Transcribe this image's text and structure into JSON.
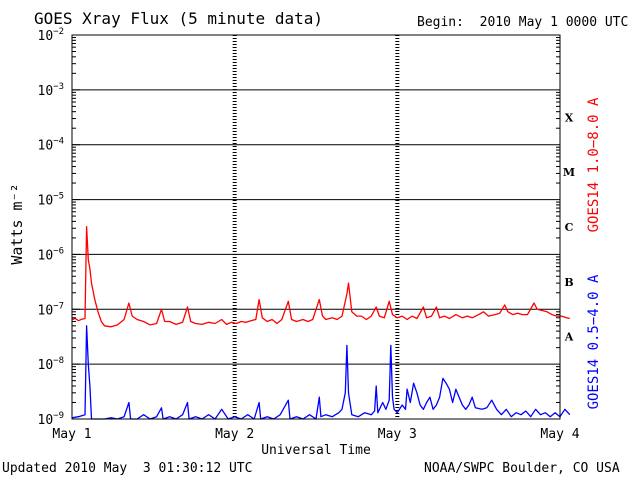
{
  "header": {
    "title": "GOES Xray Flux (5 minute data)",
    "begin_label": "Begin:",
    "begin_value": "2010 May 1 0000 UTC"
  },
  "footer": {
    "updated": "Updated 2010 May  3 01:30:12 UTC",
    "source": "NOAA/SWPC Boulder, CO USA"
  },
  "colors": {
    "long_channel": "#ff0000",
    "short_channel": "#0000ff",
    "axis": "#000000",
    "background": "#ffffff"
  },
  "chart_data": {
    "type": "line",
    "title": "GOES Xray Flux (5 minute data)",
    "xlabel": "Universal Time",
    "ylabel": "Watts m⁻²",
    "yscale": "log",
    "ylim": [
      1e-09,
      0.01
    ],
    "xlim": [
      0,
      3
    ],
    "x_unit": "days since 2010 May 1 0000 UTC",
    "x_ticks": [
      {
        "value": 0,
        "label": "May 1"
      },
      {
        "value": 1,
        "label": "May 2"
      },
      {
        "value": 2,
        "label": "May 3"
      },
      {
        "value": 3,
        "label": "May 4"
      }
    ],
    "y_ticks": [
      {
        "value": 1e-09,
        "base": "10",
        "exp": "−9"
      },
      {
        "value": 1e-08,
        "base": "10",
        "exp": "−8"
      },
      {
        "value": 1e-07,
        "base": "10",
        "exp": "−7"
      },
      {
        "value": 1e-06,
        "base": "10",
        "exp": "−6"
      },
      {
        "value": 1e-05,
        "base": "10",
        "exp": "−5"
      },
      {
        "value": 0.0001,
        "base": "10",
        "exp": "−4"
      },
      {
        "value": 0.001,
        "base": "10",
        "exp": "−3"
      },
      {
        "value": 0.01,
        "base": "10",
        "exp": "−2"
      }
    ],
    "flare_classes": [
      {
        "label": "A",
        "min": 1e-08,
        "max": 1e-07
      },
      {
        "label": "B",
        "min": 1e-07,
        "max": 1e-06
      },
      {
        "label": "C",
        "min": 1e-06,
        "max": 1e-05
      },
      {
        "label": "M",
        "min": 1e-05,
        "max": 0.0001
      },
      {
        "label": "X",
        "min": 0.0001,
        "max": 0.001
      }
    ],
    "grid": true,
    "series": [
      {
        "name": "GOES14 1.0−8.0 A",
        "color": "#ff0000",
        "points": [
          [
            0.0,
            6.5e-08
          ],
          [
            0.02,
            6.8e-08
          ],
          [
            0.04,
            6.2e-08
          ],
          [
            0.06,
            6.6e-08
          ],
          [
            0.08,
            6.8e-08
          ],
          [
            0.09,
            3.2e-06
          ],
          [
            0.1,
            8e-07
          ],
          [
            0.11,
            5.5e-07
          ],
          [
            0.12,
            3e-07
          ],
          [
            0.14,
            1.5e-07
          ],
          [
            0.16,
            9e-08
          ],
          [
            0.18,
            6e-08
          ],
          [
            0.2,
            5e-08
          ],
          [
            0.24,
            4.8e-08
          ],
          [
            0.28,
            5.2e-08
          ],
          [
            0.32,
            6.5e-08
          ],
          [
            0.35,
            1.3e-07
          ],
          [
            0.37,
            7.5e-08
          ],
          [
            0.4,
            6.5e-08
          ],
          [
            0.44,
            6e-08
          ],
          [
            0.48,
            5.2e-08
          ],
          [
            0.52,
            5.5e-08
          ],
          [
            0.55,
            1e-07
          ],
          [
            0.57,
            6e-08
          ],
          [
            0.6,
            6e-08
          ],
          [
            0.64,
            5.3e-08
          ],
          [
            0.68,
            5.8e-08
          ],
          [
            0.71,
            1.1e-07
          ],
          [
            0.73,
            6e-08
          ],
          [
            0.76,
            5.5e-08
          ],
          [
            0.8,
            5.3e-08
          ],
          [
            0.84,
            5.8e-08
          ],
          [
            0.88,
            5.5e-08
          ],
          [
            0.92,
            6.5e-08
          ],
          [
            0.95,
            5.3e-08
          ],
          [
            0.98,
            5.8e-08
          ],
          [
            1.01,
            5.5e-08
          ],
          [
            1.04,
            6e-08
          ],
          [
            1.07,
            5.8e-08
          ],
          [
            1.1,
            6.2e-08
          ],
          [
            1.13,
            6.5e-08
          ],
          [
            1.15,
            1.5e-07
          ],
          [
            1.17,
            7e-08
          ],
          [
            1.2,
            6e-08
          ],
          [
            1.23,
            6.5e-08
          ],
          [
            1.26,
            5.5e-08
          ],
          [
            1.29,
            6.5e-08
          ],
          [
            1.33,
            1.4e-07
          ],
          [
            1.35,
            6.5e-08
          ],
          [
            1.38,
            6e-08
          ],
          [
            1.42,
            6.5e-08
          ],
          [
            1.45,
            6e-08
          ],
          [
            1.48,
            6.5e-08
          ],
          [
            1.52,
            1.5e-07
          ],
          [
            1.54,
            7.5e-08
          ],
          [
            1.56,
            6.5e-08
          ],
          [
            1.6,
            7e-08
          ],
          [
            1.63,
            6.5e-08
          ],
          [
            1.66,
            7.5e-08
          ],
          [
            1.69,
            1.9e-07
          ],
          [
            1.7,
            3e-07
          ],
          [
            1.72,
            9e-08
          ],
          [
            1.75,
            7.5e-08
          ],
          [
            1.78,
            7.5e-08
          ],
          [
            1.81,
            6.5e-08
          ],
          [
            1.84,
            7.5e-08
          ],
          [
            1.87,
            1.1e-07
          ],
          [
            1.89,
            7.5e-08
          ],
          [
            1.92,
            7e-08
          ],
          [
            1.95,
            1.4e-07
          ],
          [
            1.97,
            8e-08
          ],
          [
            2.0,
            7e-08
          ],
          [
            2.03,
            7.5e-08
          ],
          [
            2.06,
            6.5e-08
          ],
          [
            2.09,
            7.5e-08
          ],
          [
            2.12,
            6.8e-08
          ],
          [
            2.16,
            1.1e-07
          ],
          [
            2.18,
            7e-08
          ],
          [
            2.21,
            7.5e-08
          ],
          [
            2.24,
            1.1e-07
          ],
          [
            2.26,
            7e-08
          ],
          [
            2.29,
            7.5e-08
          ],
          [
            2.32,
            6.8e-08
          ],
          [
            2.36,
            8e-08
          ],
          [
            2.4,
            7e-08
          ],
          [
            2.43,
            7.5e-08
          ],
          [
            2.46,
            7e-08
          ],
          [
            2.5,
            8e-08
          ],
          [
            2.53,
            9e-08
          ],
          [
            2.56,
            7.5e-08
          ],
          [
            2.6,
            8e-08
          ],
          [
            2.63,
            8.5e-08
          ],
          [
            2.66,
            1.2e-07
          ],
          [
            2.68,
            9e-08
          ],
          [
            2.71,
            8e-08
          ],
          [
            2.74,
            8.5e-08
          ],
          [
            2.77,
            8e-08
          ],
          [
            2.8,
            8e-08
          ],
          [
            2.84,
            1.3e-07
          ],
          [
            2.86,
            1e-07
          ],
          [
            2.89,
            9.5e-08
          ],
          [
            2.92,
            9e-08
          ],
          [
            2.95,
            8e-08
          ],
          [
            2.98,
            7.5e-08
          ],
          [
            3.01,
            7.5e-08
          ],
          [
            3.04,
            7e-08
          ],
          [
            3.06,
            6.8e-08
          ]
        ]
      },
      {
        "name": "GOES14 0.5−4.0 A",
        "color": "#0000ff",
        "points": [
          [
            0.0,
            1.05e-09
          ],
          [
            0.04,
            1.1e-09
          ],
          [
            0.08,
            1.2e-09
          ],
          [
            0.09,
            5e-08
          ],
          [
            0.1,
            1e-08
          ],
          [
            0.11,
            4e-09
          ],
          [
            0.12,
            1e-09
          ],
          [
            0.16,
            1e-09
          ],
          [
            0.2,
            1e-09
          ],
          [
            0.24,
            1.05e-09
          ],
          [
            0.28,
            1e-09
          ],
          [
            0.32,
            1.1e-09
          ],
          [
            0.35,
            2e-09
          ],
          [
            0.36,
            1e-09
          ],
          [
            0.4,
            1e-09
          ],
          [
            0.44,
            1.2e-09
          ],
          [
            0.48,
            1e-09
          ],
          [
            0.52,
            1.1e-09
          ],
          [
            0.55,
            1.6e-09
          ],
          [
            0.56,
            1e-09
          ],
          [
            0.6,
            1.1e-09
          ],
          [
            0.64,
            1e-09
          ],
          [
            0.68,
            1.2e-09
          ],
          [
            0.71,
            2e-09
          ],
          [
            0.72,
            1e-09
          ],
          [
            0.76,
            1.1e-09
          ],
          [
            0.8,
            1e-09
          ],
          [
            0.84,
            1.2e-09
          ],
          [
            0.88,
            1e-09
          ],
          [
            0.92,
            1.5e-09
          ],
          [
            0.96,
            1e-09
          ],
          [
            1.0,
            1.1e-09
          ],
          [
            1.04,
            1e-09
          ],
          [
            1.08,
            1.2e-09
          ],
          [
            1.12,
            1e-09
          ],
          [
            1.15,
            2e-09
          ],
          [
            1.16,
            1e-09
          ],
          [
            1.2,
            1.1e-09
          ],
          [
            1.24,
            1e-09
          ],
          [
            1.28,
            1.2e-09
          ],
          [
            1.33,
            2.2e-09
          ],
          [
            1.34,
            1e-09
          ],
          [
            1.38,
            1.1e-09
          ],
          [
            1.42,
            1e-09
          ],
          [
            1.46,
            1.2e-09
          ],
          [
            1.5,
            1e-09
          ],
          [
            1.52,
            2.5e-09
          ],
          [
            1.53,
            1.1e-09
          ],
          [
            1.56,
            1.2e-09
          ],
          [
            1.6,
            1.1e-09
          ],
          [
            1.64,
            1.3e-09
          ],
          [
            1.66,
            1.5e-09
          ],
          [
            1.68,
            3e-09
          ],
          [
            1.69,
            2.2e-08
          ],
          [
            1.7,
            3e-09
          ],
          [
            1.72,
            1.2e-09
          ],
          [
            1.76,
            1.1e-09
          ],
          [
            1.8,
            1.3e-09
          ],
          [
            1.84,
            1.2e-09
          ],
          [
            1.86,
            1.4e-09
          ],
          [
            1.87,
            4e-09
          ],
          [
            1.88,
            1.3e-09
          ],
          [
            1.91,
            2e-09
          ],
          [
            1.93,
            1.5e-09
          ],
          [
            1.95,
            2.2e-09
          ],
          [
            1.96,
            2.2e-08
          ],
          [
            1.97,
            2.5e-09
          ],
          [
            1.98,
            1.5e-09
          ],
          [
            2.0,
            1.3e-09
          ],
          [
            2.03,
            1.8e-09
          ],
          [
            2.05,
            1.5e-09
          ],
          [
            2.06,
            3.5e-09
          ],
          [
            2.08,
            2e-09
          ],
          [
            2.1,
            4.5e-09
          ],
          [
            2.12,
            3e-09
          ],
          [
            2.14,
            1.8e-09
          ],
          [
            2.16,
            1.5e-09
          ],
          [
            2.18,
            2e-09
          ],
          [
            2.2,
            2.5e-09
          ],
          [
            2.22,
            1.5e-09
          ],
          [
            2.24,
            1.8e-09
          ],
          [
            2.26,
            2.5e-09
          ],
          [
            2.28,
            5.5e-09
          ],
          [
            2.3,
            4.5e-09
          ],
          [
            2.32,
            3.5e-09
          ],
          [
            2.34,
            2e-09
          ],
          [
            2.36,
            3.5e-09
          ],
          [
            2.38,
            2.5e-09
          ],
          [
            2.4,
            1.8e-09
          ],
          [
            2.42,
            1.5e-09
          ],
          [
            2.44,
            1.8e-09
          ],
          [
            2.46,
            2.5e-09
          ],
          [
            2.48,
            1.6e-09
          ],
          [
            2.52,
            1.5e-09
          ],
          [
            2.55,
            1.6e-09
          ],
          [
            2.58,
            2.2e-09
          ],
          [
            2.61,
            1.5e-09
          ],
          [
            2.64,
            1.2e-09
          ],
          [
            2.67,
            1.5e-09
          ],
          [
            2.7,
            1.1e-09
          ],
          [
            2.73,
            1.3e-09
          ],
          [
            2.76,
            1.2e-09
          ],
          [
            2.79,
            1.4e-09
          ],
          [
            2.82,
            1.1e-09
          ],
          [
            2.85,
            1.5e-09
          ],
          [
            2.88,
            1.2e-09
          ],
          [
            2.91,
            1.3e-09
          ],
          [
            2.94,
            1.1e-09
          ],
          [
            2.97,
            1.3e-09
          ],
          [
            3.0,
            1.1e-09
          ],
          [
            3.03,
            1.5e-09
          ],
          [
            3.06,
            1.2e-09
          ]
        ]
      }
    ]
  }
}
